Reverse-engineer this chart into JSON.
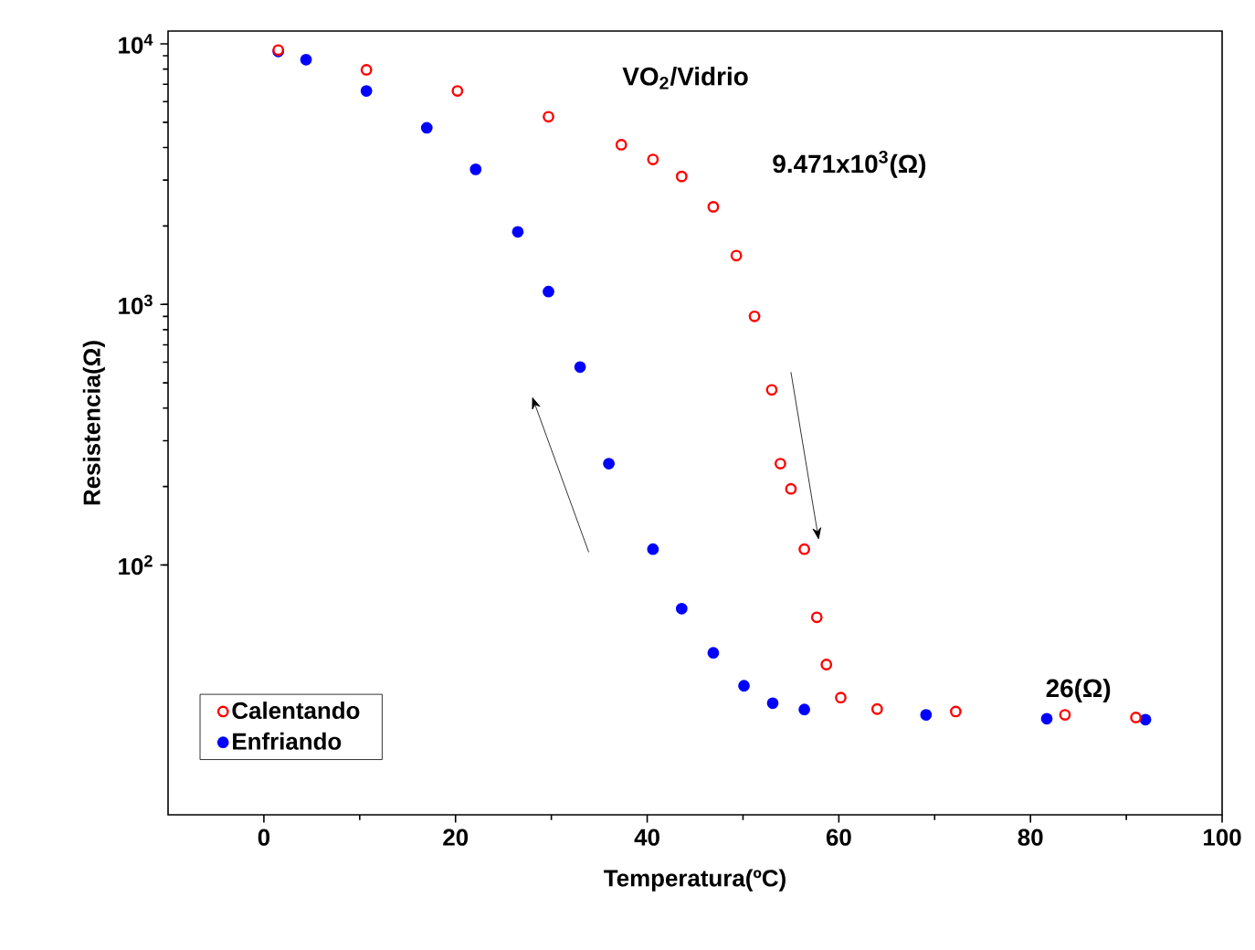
{
  "chart_data": {
    "type": "scatter",
    "xlabel": "Temperatura(ºC)",
    "ylabel": "Resistencia(Ω)",
    "annotations": [
      "VO$_{2}$/Vidrio",
      "9.471x10$^{3}$(Ω)",
      "26(Ω)"
    ],
    "xlim": [
      -10,
      100
    ],
    "xticks": [
      0,
      20,
      40,
      60,
      80,
      100
    ],
    "ylim": [
      11,
      11200
    ],
    "yticks": [
      {
        "value": 100,
        "label": "10$^{2}$"
      },
      {
        "value": 1000,
        "label": "10$^{3}$"
      },
      {
        "value": 10000,
        "label": "10$^{4}$"
      }
    ],
    "log": "y",
    "legend": "bottom left",
    "marker": "circle",
    "series": [
      {
        "name": "Calentando",
        "color": "#ff0000",
        "x": [
          1.5,
          10.7,
          20.2,
          29.7,
          37.3,
          40.6,
          43.6,
          46.9,
          49.3,
          51.2,
          53,
          53.9,
          55,
          56.4,
          57.7,
          58.7,
          60.2,
          64,
          72.2,
          83.6,
          91
        ],
        "values": [
          9471,
          7950,
          6600,
          5250,
          4100,
          3600,
          3100,
          2370,
          1540,
          900,
          470,
          245,
          196,
          115,
          63,
          41.5,
          31,
          28,
          27.4,
          26.6,
          26
        ]
      },
      {
        "name": "Enfriando",
        "color": "#0000ff",
        "x": [
          1.5,
          4.4,
          10.7,
          17,
          22.1,
          26.5,
          29.7,
          33,
          36,
          40.6,
          43.6,
          46.9,
          50.1,
          53.1,
          56.4,
          69.1,
          81.7,
          92
        ],
        "values": [
          9350,
          8700,
          6600,
          4760,
          3300,
          1900,
          1120,
          575,
          245,
          115,
          68,
          46,
          34.4,
          29.5,
          27.9,
          26.6,
          25.7,
          25.5
        ]
      }
    ]
  }
}
